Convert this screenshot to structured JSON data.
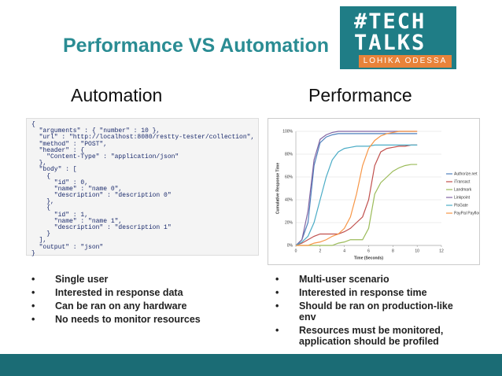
{
  "header": {
    "title": "Performance VS Automation"
  },
  "logo": {
    "line1": "#TECH",
    "line2": "TALKS",
    "tagline": "LOHIKA ODESSA"
  },
  "automation": {
    "heading": "Automation",
    "code": [
      "{",
      "  \"arguments\" : { \"number\" : 10 },",
      "  \"url\" : \"http://localhost:8080/restty-tester/collection\",",
      "  \"method\" : \"POST\",",
      "  \"header\" : {",
      "    \"Content-Type\" : \"application/json\"",
      "  },",
      "  \"body\" : [",
      "    {",
      "      \"id\" : 0,",
      "      \"name\" : \"name 0\",",
      "      \"description\" : \"description 0\"",
      "    },",
      "    {",
      "      \"id\" : 1,",
      "      \"name\" : \"name 1\",",
      "      \"description\" : \"description 1\"",
      "    }",
      "  ],",
      "  \"output\" : \"json\"",
      "}"
    ],
    "bullets": [
      "Single user",
      "Interested in response data",
      "Can be ran on any hardware",
      "No needs to monitor resources"
    ]
  },
  "performance": {
    "heading": "Performance",
    "bullets": [
      "Multi-user scenario",
      "Interested in response time",
      "Should be ran on production-like env",
      "Resources must be monitored, application should be profiled"
    ]
  },
  "chart_data": {
    "type": "line",
    "x_label": "Time (Seconds)",
    "y_label": "Cumulative Response Time",
    "x": [
      0,
      0.5,
      1,
      1.5,
      2,
      2.5,
      3,
      3.5,
      4,
      4.5,
      5,
      5.5,
      6,
      6.5,
      7,
      7.5,
      8,
      8.5,
      9,
      9.5,
      10
    ],
    "xlim": [
      0,
      12
    ],
    "xticks": [
      0,
      2,
      4,
      6,
      8,
      10,
      12
    ],
    "ylim": [
      0,
      100
    ],
    "yticks": [
      {
        "value": 0,
        "label": "0%"
      },
      {
        "value": 20,
        "label": "20%"
      },
      {
        "value": 40,
        "label": "40%"
      },
      {
        "value": 60,
        "label": "60%"
      },
      {
        "value": 80,
        "label": "80%"
      },
      {
        "value": 100,
        "label": "100%"
      }
    ],
    "grid": true,
    "legend": "right",
    "series": [
      {
        "name": "Authorize.net",
        "color": "#4f81bd",
        "values": [
          0,
          5,
          20,
          70,
          90,
          95,
          97,
          98,
          98,
          98,
          98,
          98,
          98,
          98,
          98,
          98,
          98,
          98,
          98,
          98,
          98
        ]
      },
      {
        "name": "iTransact",
        "color": "#c0504d",
        "values": [
          0,
          2,
          5,
          8,
          10,
          10,
          10,
          10,
          12,
          15,
          20,
          25,
          40,
          70,
          82,
          85,
          86,
          87,
          87,
          88,
          88
        ]
      },
      {
        "name": "Landmark",
        "color": "#9bbb59",
        "values": [
          0,
          0,
          0,
          0,
          0,
          0,
          0,
          2,
          3,
          5,
          5,
          5,
          15,
          45,
          55,
          60,
          65,
          68,
          70,
          71,
          71
        ]
      },
      {
        "name": "Linkpoint",
        "color": "#8064a2",
        "values": [
          0,
          5,
          30,
          75,
          93,
          97,
          99,
          100,
          100,
          100,
          100,
          100,
          100,
          100,
          100,
          100,
          100,
          100,
          100,
          100,
          100
        ]
      },
      {
        "name": "PlsGate",
        "color": "#4bacc6",
        "values": [
          0,
          3,
          8,
          20,
          40,
          60,
          75,
          82,
          85,
          86,
          87,
          87,
          87,
          88,
          88,
          88,
          88,
          88,
          88,
          88,
          88
        ]
      },
      {
        "name": "PayPal Payflow Pro",
        "color": "#f79646",
        "values": [
          0,
          0,
          0,
          2,
          3,
          5,
          8,
          10,
          15,
          25,
          45,
          70,
          85,
          92,
          96,
          98,
          99,
          100,
          100,
          100,
          100
        ]
      }
    ]
  }
}
